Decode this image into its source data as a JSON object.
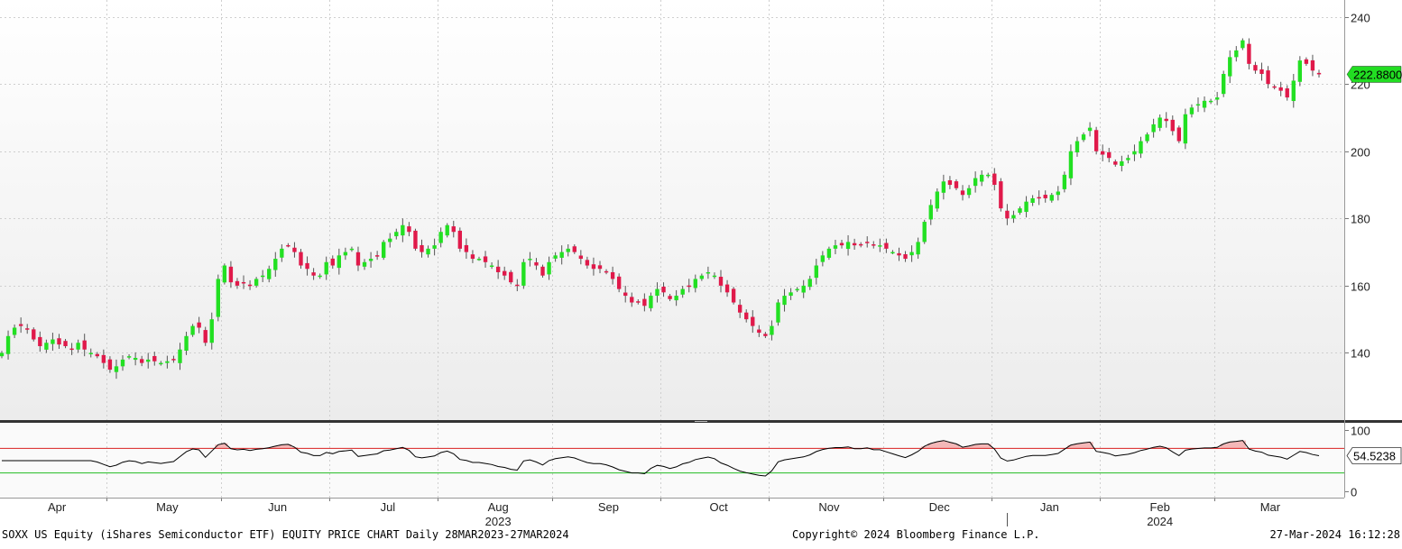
{
  "footer": {
    "left": "SOXX US Equity (iShares Semiconductor ETF) EQUITY PRICE CHART  Daily 28MAR2023-27MAR2024",
    "center": "Copyright© 2024 Bloomberg Finance L.P.",
    "right": "27-Mar-2024 16:12:28"
  },
  "colors": {
    "up": "#22e022",
    "down": "#e0194a",
    "rsi_line": "#000000",
    "overbought_line": "#d92020",
    "oversold_line": "#22bb22",
    "last_price_tag": "#22dd22"
  },
  "chart_data": [
    {
      "type": "candlestick",
      "title": "",
      "period": "Daily 28MAR2023-27MAR2024",
      "ylim": [
        120,
        245
      ],
      "yticks": [
        140,
        160,
        180,
        200,
        220,
        240
      ],
      "grid": true,
      "last_price_label": "222.8800",
      "months": [
        {
          "label": "Apr",
          "year": ""
        },
        {
          "label": "May",
          "year": ""
        },
        {
          "label": "Jun",
          "year": ""
        },
        {
          "label": "Jul",
          "year": ""
        },
        {
          "label": "Aug",
          "year": "2023"
        },
        {
          "label": "Sep",
          "year": ""
        },
        {
          "label": "Oct",
          "year": ""
        },
        {
          "label": "Nov",
          "year": ""
        },
        {
          "label": "Dec",
          "year": ""
        },
        {
          "label": "Jan",
          "year": ""
        },
        {
          "label": "Feb",
          "year": "2024"
        },
        {
          "label": "Mar",
          "year": ""
        }
      ],
      "close_series": [
        140,
        145,
        147.5,
        148,
        147,
        144,
        142,
        143,
        144,
        142.5,
        142,
        141,
        143,
        141,
        140,
        139,
        137,
        135,
        136,
        138,
        139,
        138.5,
        137,
        138,
        137.5,
        137,
        137.5,
        138,
        141,
        145,
        148,
        147.5,
        143,
        150,
        162,
        166,
        161,
        160,
        161,
        160,
        162,
        163,
        165,
        168,
        171,
        172,
        170,
        166,
        165,
        163,
        163,
        167,
        166,
        169,
        170,
        171,
        166,
        167,
        168,
        169,
        173,
        174,
        176,
        178,
        176,
        171,
        170,
        171,
        172,
        176,
        178,
        176,
        171,
        170,
        168,
        168,
        167,
        166,
        164,
        163,
        161,
        160,
        167,
        168,
        166,
        163,
        167,
        169,
        170,
        171,
        170,
        168,
        166,
        165,
        165,
        164,
        162,
        159,
        157,
        155,
        155,
        154,
        157,
        159,
        158,
        156,
        157,
        159,
        160,
        162,
        163,
        164,
        163,
        160,
        158,
        155,
        152,
        150,
        148,
        146,
        145,
        148,
        155,
        157,
        158,
        159,
        160,
        162,
        166,
        169,
        171,
        172,
        172,
        173,
        172,
        172,
        173,
        172,
        172,
        171,
        170,
        169,
        168,
        170,
        173,
        179,
        184,
        188,
        191,
        190,
        189,
        187,
        189,
        192,
        193,
        193,
        190,
        183,
        180,
        181,
        183,
        185,
        186,
        186,
        186,
        187,
        188,
        193,
        200,
        203,
        205,
        207,
        200,
        199,
        198,
        196,
        197,
        198,
        200,
        203,
        205,
        208,
        210,
        209,
        206,
        203,
        211,
        213,
        214,
        215,
        215,
        216,
        223,
        228,
        230,
        233,
        226,
        224,
        223,
        220,
        219,
        218,
        216,
        221,
        227,
        226,
        224,
        222.88
      ],
      "rsi_panel": {
        "yticks": [
          0,
          100
        ],
        "ylim": [
          -10,
          110
        ],
        "overbought": 70,
        "oversold": 30,
        "last_value_label": "54.5238"
      }
    }
  ]
}
